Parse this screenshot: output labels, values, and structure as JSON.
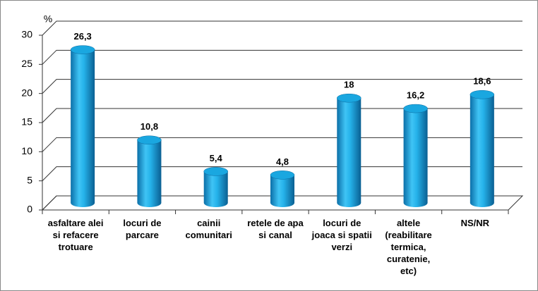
{
  "chart_data": {
    "type": "bar",
    "y_label": "%",
    "categories": [
      "asfaltare alei si refacere trotuare",
      "locuri de parcare",
      "cainii comunitari",
      "retele de apa si canal",
      "locuri de joaca si spatii verzi",
      "altele (reabilitare termica, curatenie, etc)",
      "NS/NR"
    ],
    "values": [
      26.3,
      10.8,
      5.4,
      4.8,
      18,
      16.2,
      18.6
    ],
    "value_labels": [
      "26,3",
      "10,8",
      "5,4",
      "4,8",
      "18",
      "16,2",
      "18,6"
    ],
    "color": "#1aa7e0",
    "ylim": [
      0,
      30
    ],
    "yticks": [
      0,
      5,
      10,
      15,
      20,
      25,
      30
    ],
    "grid": true
  }
}
